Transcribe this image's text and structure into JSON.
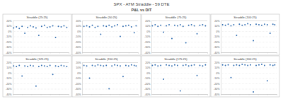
{
  "header": {
    "title": "SPX - ATM Straddle - 59 DTE",
    "subtitle": "P&L vs DIT"
  },
  "chart_data": [
    {
      "type": "scatter",
      "title": "Straddle (25:25)",
      "color": "#2e6bb0",
      "marker": "circle",
      "grid": true,
      "tick_labels": "y",
      "x": [
        1,
        4,
        7,
        10,
        13,
        16,
        19,
        22,
        25,
        28,
        31,
        34,
        37,
        40,
        43,
        46,
        49,
        52,
        55,
        58
      ],
      "values": [
        6,
        8,
        5,
        9,
        -4,
        7,
        10,
        8,
        6,
        -8,
        9,
        11,
        7,
        8,
        10,
        -12,
        9,
        8,
        10,
        7
      ],
      "xlim": [
        0,
        60
      ],
      "xticks": [
        0,
        10,
        20,
        30,
        40,
        50,
        60
      ],
      "ylim": [
        -40,
        20
      ],
      "yticks": [
        {
          "value": -40,
          "label": "-40%"
        },
        {
          "value": -30,
          "label": "-30%"
        },
        {
          "value": -20,
          "label": "-20%"
        },
        {
          "value": -10,
          "label": "-10%"
        },
        {
          "value": 0,
          "label": "0%"
        },
        {
          "value": 10,
          "label": "10%"
        },
        {
          "value": 20,
          "label": "20%"
        }
      ]
    },
    {
      "type": "scatter",
      "title": "Straddle (50:25)",
      "color": "#2e6bb0",
      "marker": "circle",
      "grid": true,
      "tick_labels": "y",
      "x": [
        2,
        5,
        8,
        11,
        14,
        17,
        20,
        23,
        26,
        29,
        32,
        35,
        38,
        41,
        44,
        47,
        50,
        53,
        56,
        58
      ],
      "values": [
        9,
        10,
        8,
        11,
        7,
        9,
        -6,
        10,
        9,
        11,
        8,
        10,
        12,
        -10,
        9,
        10,
        11,
        8,
        -3,
        10
      ],
      "xlim": [
        0,
        60
      ],
      "xticks": [
        0,
        10,
        20,
        30,
        40,
        50,
        60
      ],
      "ylim": [
        -40,
        20
      ],
      "yticks": [
        {
          "value": -40,
          "label": "-40%"
        },
        {
          "value": -30,
          "label": "-30%"
        },
        {
          "value": -20,
          "label": "-20%"
        },
        {
          "value": -10,
          "label": "-10%"
        },
        {
          "value": 0,
          "label": "0%"
        },
        {
          "value": 10,
          "label": "10%"
        },
        {
          "value": 20,
          "label": "20%"
        }
      ]
    },
    {
      "type": "scatter",
      "title": "Straddle (75:25)",
      "color": "#2e6bb0",
      "marker": "circle",
      "grid": true,
      "tick_labels": "y",
      "x": [
        1,
        4,
        7,
        10,
        13,
        16,
        19,
        22,
        25,
        28,
        31,
        34,
        37,
        40,
        43,
        46,
        49,
        52,
        55,
        58
      ],
      "values": [
        10,
        12,
        9,
        11,
        -2,
        10,
        12,
        -14,
        11,
        10,
        12,
        9,
        -22,
        11,
        12,
        10,
        -5,
        11,
        12,
        10
      ],
      "xlim": [
        0,
        60
      ],
      "xticks": [
        0,
        10,
        20,
        30,
        40,
        50,
        60
      ],
      "ylim": [
        -40,
        20
      ],
      "yticks": [
        {
          "value": -40,
          "label": "-40%"
        },
        {
          "value": -30,
          "label": "-30%"
        },
        {
          "value": -20,
          "label": "-20%"
        },
        {
          "value": -10,
          "label": "-10%"
        },
        {
          "value": 0,
          "label": "0%"
        },
        {
          "value": 10,
          "label": "10%"
        },
        {
          "value": 20,
          "label": "20%"
        }
      ]
    },
    {
      "type": "scatter",
      "title": "Straddle (100:25)",
      "color": "#2e6bb0",
      "marker": "circle",
      "grid": true,
      "tick_labels": "y",
      "x": [
        2,
        5,
        8,
        11,
        14,
        17,
        20,
        23,
        26,
        29,
        32,
        35,
        38,
        41,
        44,
        47,
        50,
        53,
        56,
        58
      ],
      "values": [
        12,
        11,
        13,
        10,
        12,
        -8,
        13,
        11,
        12,
        14,
        12,
        -18,
        13,
        12,
        11,
        13,
        12,
        -4,
        13,
        12
      ],
      "xlim": [
        0,
        60
      ],
      "xticks": [
        0,
        10,
        20,
        30,
        40,
        50,
        60
      ],
      "ylim": [
        -40,
        20
      ],
      "yticks": [
        {
          "value": -40,
          "label": "-40%"
        },
        {
          "value": -30,
          "label": "-30%"
        },
        {
          "value": -20,
          "label": "-20%"
        },
        {
          "value": -10,
          "label": "-10%"
        },
        {
          "value": 0,
          "label": "0%"
        },
        {
          "value": 10,
          "label": "10%"
        },
        {
          "value": 20,
          "label": "20%"
        }
      ]
    },
    {
      "type": "scatter",
      "title": "Straddle (125:25)",
      "color": "#2e6bb0",
      "marker": "circle",
      "grid": true,
      "tick_labels": "y",
      "x": [
        1,
        4,
        7,
        10,
        13,
        16,
        19,
        22,
        25,
        28,
        31,
        34,
        37,
        40,
        43,
        46,
        49,
        52,
        55,
        58
      ],
      "values": [
        13,
        12,
        14,
        -6,
        13,
        12,
        14,
        13,
        -25,
        12,
        14,
        13,
        12,
        14,
        -3,
        13,
        12,
        14,
        13,
        12
      ],
      "xlim": [
        0,
        60
      ],
      "xticks": [
        0,
        10,
        20,
        30,
        40,
        50,
        60
      ],
      "ylim": [
        -40,
        20
      ],
      "yticks": [
        {
          "value": -40,
          "label": "-40%"
        },
        {
          "value": -30,
          "label": "-30%"
        },
        {
          "value": -20,
          "label": "-20%"
        },
        {
          "value": -10,
          "label": "-10%"
        },
        {
          "value": 0,
          "label": "0%"
        },
        {
          "value": 10,
          "label": "10%"
        },
        {
          "value": 20,
          "label": "20%"
        }
      ]
    },
    {
      "type": "scatter",
      "title": "Straddle (150:25)",
      "color": "#2e6bb0",
      "marker": "circle",
      "grid": true,
      "tick_labels": "y",
      "x": [
        2,
        5,
        8,
        11,
        14,
        17,
        20,
        23,
        26,
        29,
        32,
        35,
        38,
        41,
        44,
        47,
        50,
        53,
        56,
        58
      ],
      "values": [
        14,
        13,
        -10,
        14,
        13,
        15,
        14,
        13,
        14,
        -30,
        13,
        15,
        14,
        13,
        -7,
        14,
        13,
        15,
        14,
        13
      ],
      "xlim": [
        0,
        60
      ],
      "xticks": [
        0,
        10,
        20,
        30,
        40,
        50,
        60
      ],
      "ylim": [
        -40,
        20
      ],
      "yticks": [
        {
          "value": -40,
          "label": "-40%"
        },
        {
          "value": -30,
          "label": "-30%"
        },
        {
          "value": -20,
          "label": "-20%"
        },
        {
          "value": -10,
          "label": "-10%"
        },
        {
          "value": 0,
          "label": "0%"
        },
        {
          "value": 10,
          "label": "10%"
        },
        {
          "value": 20,
          "label": "20%"
        }
      ]
    },
    {
      "type": "scatter",
      "title": "Straddle (175:25)",
      "color": "#2e6bb0",
      "marker": "circle",
      "grid": true,
      "tick_labels": "y",
      "x": [
        1,
        4,
        7,
        10,
        13,
        16,
        19,
        22,
        25,
        28,
        31,
        34,
        37,
        40,
        43,
        46,
        49,
        52,
        55,
        58
      ],
      "values": [
        14,
        15,
        13,
        14,
        -12,
        15,
        14,
        13,
        15,
        14,
        -34,
        14,
        15,
        13,
        14,
        15,
        -5,
        14,
        13,
        15
      ],
      "xlim": [
        0,
        60
      ],
      "xticks": [
        0,
        10,
        20,
        30,
        40,
        50,
        60
      ],
      "ylim": [
        -40,
        20
      ],
      "yticks": [
        {
          "value": -40,
          "label": "-40%"
        },
        {
          "value": -30,
          "label": "-30%"
        },
        {
          "value": -20,
          "label": "-20%"
        },
        {
          "value": -10,
          "label": "-10%"
        },
        {
          "value": 0,
          "label": "0%"
        },
        {
          "value": 10,
          "label": "10%"
        },
        {
          "value": 20,
          "label": "20%"
        }
      ]
    },
    {
      "type": "scatter",
      "title": "Straddle (200:25)",
      "color": "#2e6bb0",
      "marker": "circle",
      "grid": true,
      "tick_labels": "y",
      "x": [
        2,
        5,
        8,
        11,
        14,
        17,
        20,
        23,
        26,
        29,
        32,
        35,
        38,
        41,
        44,
        47,
        50,
        53,
        56,
        58
      ],
      "values": [
        15,
        14,
        15,
        -9,
        14,
        15,
        14,
        16,
        15,
        14,
        15,
        -36,
        14,
        15,
        16,
        14,
        -15,
        15,
        14,
        15
      ],
      "xlim": [
        0,
        60
      ],
      "xticks": [
        0,
        10,
        20,
        30,
        40,
        50,
        60
      ],
      "ylim": [
        -40,
        20
      ],
      "yticks": [
        {
          "value": -40,
          "label": "-40%"
        },
        {
          "value": -30,
          "label": "-30%"
        },
        {
          "value": -20,
          "label": "-20%"
        },
        {
          "value": -10,
          "label": "-10%"
        },
        {
          "value": 0,
          "label": "0%"
        },
        {
          "value": 10,
          "label": "10%"
        },
        {
          "value": 20,
          "label": "20%"
        }
      ]
    }
  ]
}
